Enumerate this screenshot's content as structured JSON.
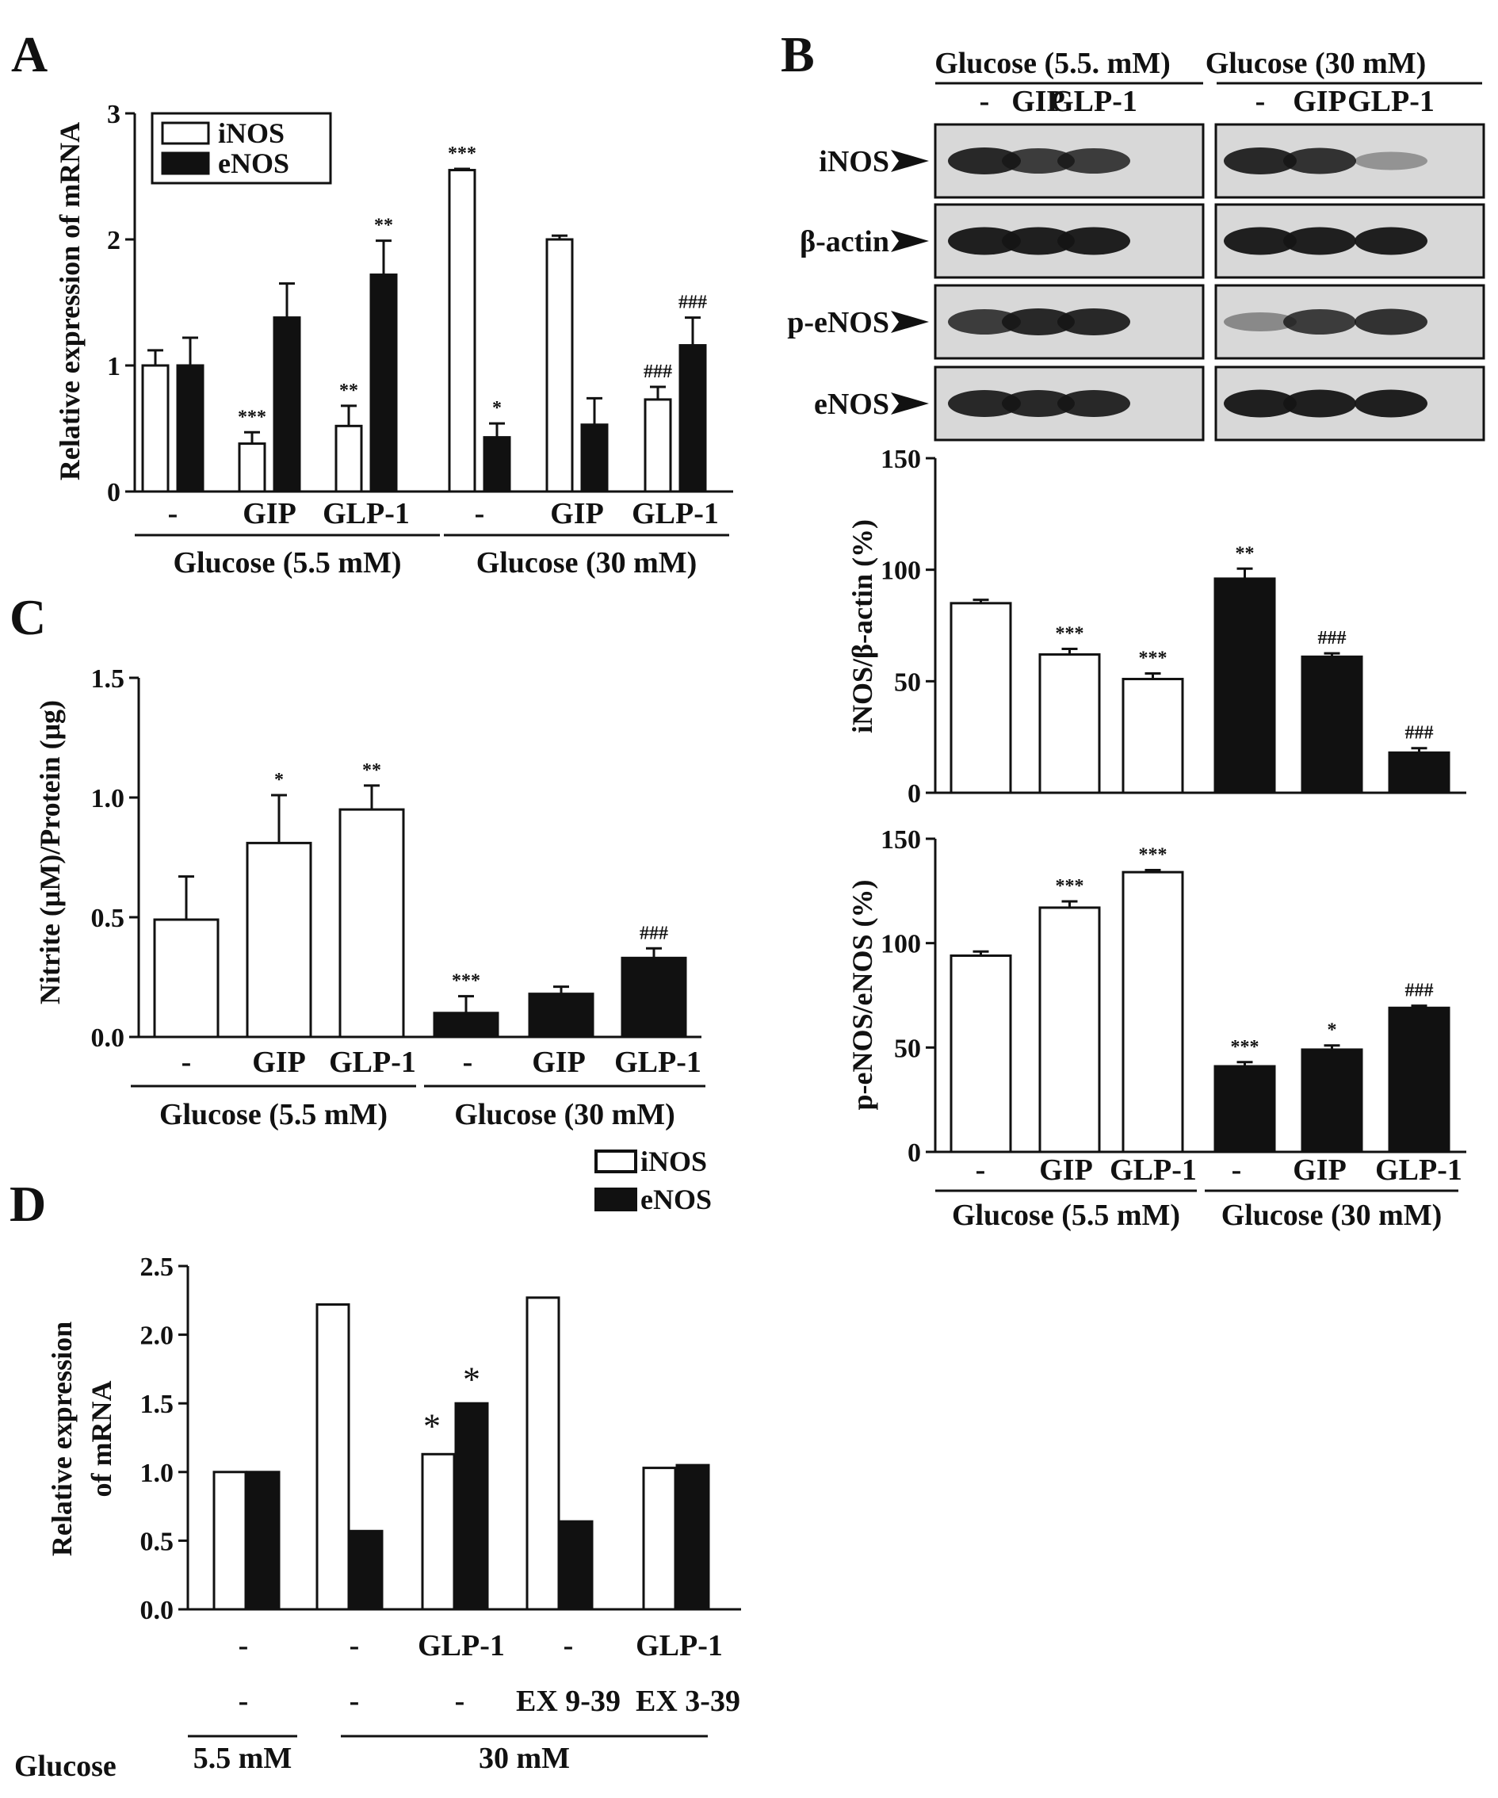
{
  "panels": {
    "A": "A",
    "B": "B",
    "C": "C",
    "D": "D"
  },
  "legend": {
    "iNOS": "iNOS",
    "eNOS": "eNOS"
  },
  "colors": {
    "iNOS_fill": "#ffffff",
    "eNOS_fill": "#111111",
    "stroke": "#111111"
  },
  "blot": {
    "groups": [
      {
        "label": "Glucose (5.5. mM)",
        "lanes": [
          "-",
          "GIP",
          "GLP-1"
        ]
      },
      {
        "label": "Glucose (30 mM)",
        "lanes": [
          "-",
          "GIP",
          "GLP-1"
        ]
      }
    ],
    "rows": [
      "iNOS",
      "β-actin",
      "p-eNOS",
      "eNOS"
    ],
    "band_intensity": {
      "iNOS": [
        0.9,
        0.8,
        0.8,
        0.9,
        0.85,
        0.35
      ],
      "β-actin": [
        0.95,
        0.95,
        0.95,
        0.95,
        0.95,
        0.95
      ],
      "p-eNOS": [
        0.8,
        0.9,
        0.9,
        0.4,
        0.8,
        0.85
      ],
      "eNOS": [
        0.9,
        0.9,
        0.9,
        0.95,
        0.95,
        0.95
      ]
    }
  },
  "chart_data": [
    {
      "id": "A",
      "type": "bar",
      "ylabel": "Relative expression of mRNA",
      "ylim": [
        0,
        3
      ],
      "yticks": [
        "0",
        "1",
        "2",
        "3"
      ],
      "categories": [
        "-",
        "GIP",
        "GLP-1",
        "-",
        "GIP",
        "GLP-1"
      ],
      "groups": [
        {
          "label": "Glucose (5.5 mM)",
          "span": [
            0,
            2
          ]
        },
        {
          "label": "Glucose (30 mM)",
          "span": [
            3,
            5
          ]
        }
      ],
      "legend": "top-left",
      "series": [
        {
          "name": "iNOS",
          "values": [
            1.0,
            0.38,
            0.52,
            2.55,
            2.0,
            0.73
          ],
          "errors": [
            0.12,
            0.09,
            0.16,
            0.01,
            0.03,
            0.1
          ],
          "annotations": [
            "",
            "***",
            "**",
            "***",
            "",
            "###"
          ]
        },
        {
          "name": "eNOS",
          "values": [
            1.0,
            1.38,
            1.72,
            0.43,
            0.53,
            1.16
          ],
          "errors": [
            0.22,
            0.27,
            0.27,
            0.11,
            0.21,
            0.22
          ],
          "annotations": [
            "",
            "",
            "**",
            "*",
            "",
            "###"
          ]
        }
      ]
    },
    {
      "id": "B1",
      "type": "bar",
      "ylabel": "iNOS/β-actin (%)",
      "ylim": [
        0,
        150
      ],
      "yticks": [
        "0",
        "50",
        "100",
        "150"
      ],
      "values": [
        85,
        62,
        51,
        96,
        61,
        18
      ],
      "errors": [
        1.5,
        2.5,
        2.5,
        4.5,
        1.5,
        2
      ],
      "fills": [
        "iNOS",
        "iNOS",
        "iNOS",
        "eNOS",
        "eNOS",
        "eNOS"
      ],
      "annotations": [
        "",
        "***",
        "***",
        "**",
        "###",
        "###"
      ]
    },
    {
      "id": "B2",
      "type": "bar",
      "ylabel": "p-eNOS/eNOS (%)",
      "ylim": [
        0,
        150
      ],
      "yticks": [
        "0",
        "50",
        "100",
        "150"
      ],
      "categories": [
        "-",
        "GIP",
        "GLP-1",
        "-",
        "GIP",
        "GLP-1"
      ],
      "groups": [
        {
          "label": "Glucose (5.5 mM)",
          "span": [
            0,
            2
          ]
        },
        {
          "label": "Glucose (30 mM)",
          "span": [
            3,
            5
          ]
        }
      ],
      "values": [
        94,
        117,
        134,
        41,
        49,
        69
      ],
      "errors": [
        2,
        3,
        1,
        2,
        2,
        1
      ],
      "fills": [
        "iNOS",
        "iNOS",
        "iNOS",
        "eNOS",
        "eNOS",
        "eNOS"
      ],
      "annotations": [
        "",
        "***",
        "***",
        "***",
        "*",
        "###"
      ]
    },
    {
      "id": "C",
      "type": "bar",
      "ylabel": "Nitrite (μM)/Protein (μg)",
      "ylim": [
        0,
        1.5
      ],
      "yticks": [
        "0.0",
        "0.5",
        "1.0",
        "1.5"
      ],
      "categories": [
        "-",
        "GIP",
        "GLP-1",
        "-",
        "GIP",
        "GLP-1"
      ],
      "groups": [
        {
          "label": "Glucose (5.5 mM)",
          "span": [
            0,
            2
          ]
        },
        {
          "label": "Glucose (30 mM)",
          "span": [
            3,
            5
          ]
        }
      ],
      "values": [
        0.49,
        0.81,
        0.95,
        0.1,
        0.18,
        0.33
      ],
      "errors": [
        0.18,
        0.2,
        0.1,
        0.07,
        0.03,
        0.04
      ],
      "fills": [
        "iNOS",
        "iNOS",
        "iNOS",
        "eNOS",
        "eNOS",
        "eNOS"
      ],
      "annotations": [
        "",
        "*",
        "**",
        "***",
        "",
        "###"
      ]
    },
    {
      "id": "D",
      "type": "bar",
      "ylabel": [
        "Relative expression",
        "of mRNA"
      ],
      "ylim": [
        0,
        2.5
      ],
      "yticks": [
        "0.0",
        "0.5",
        "1.0",
        "1.5",
        "2.0",
        "2.5"
      ],
      "row1": [
        "-",
        "-",
        "GLP-1",
        "-",
        "GLP-1"
      ],
      "row2": [
        "-",
        "-",
        "-",
        "EX 9-39",
        "EX 3-39"
      ],
      "row_label": "Glucose",
      "groups": [
        {
          "label": "5.5 mM",
          "span": [
            0,
            0
          ]
        },
        {
          "label": "30 mM",
          "span": [
            1,
            4
          ]
        }
      ],
      "series": [
        {
          "name": "iNOS",
          "values": [
            1.0,
            2.22,
            1.13,
            2.27,
            1.03
          ],
          "annotations": [
            "",
            "",
            "*",
            "",
            ""
          ]
        },
        {
          "name": "eNOS",
          "values": [
            1.0,
            0.57,
            1.5,
            0.64,
            1.05
          ],
          "annotations": [
            "",
            "",
            "*",
            "",
            ""
          ]
        }
      ]
    }
  ]
}
